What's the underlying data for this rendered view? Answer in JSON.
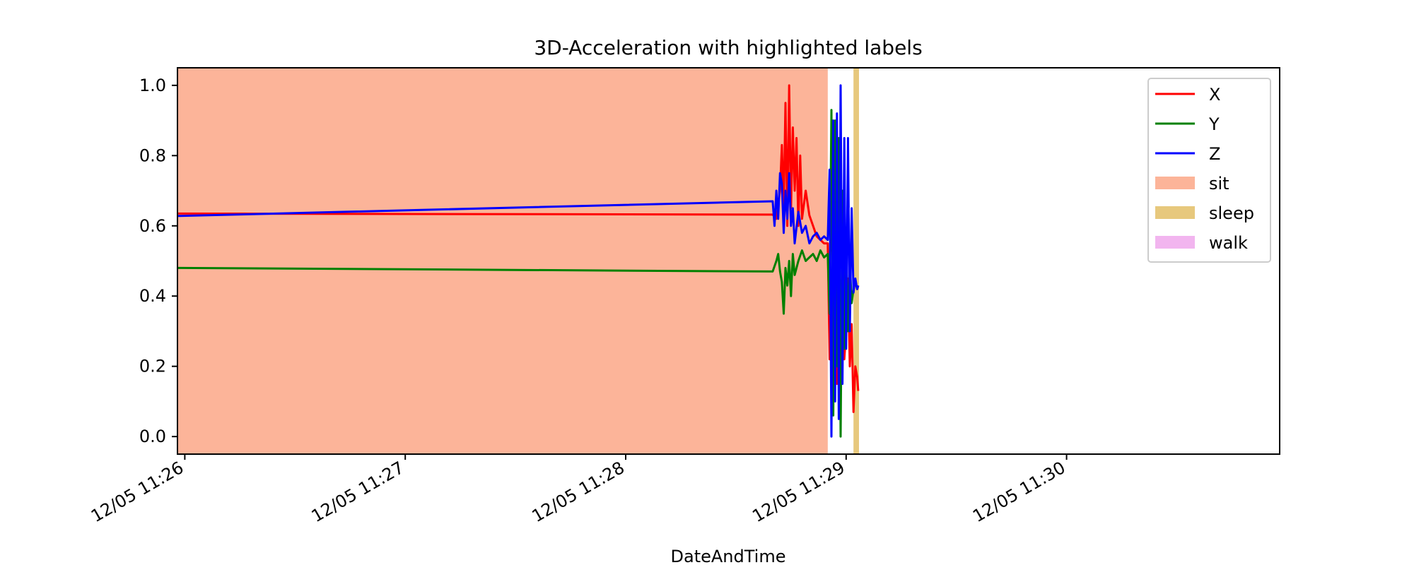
{
  "chart_data": {
    "type": "line",
    "title": "3D-Acceleration with highlighted labels",
    "xlabel": "DateAndTime",
    "ylabel": "",
    "x_range": [
      "12/05 11:25:58",
      "12/05 11:30:58"
    ],
    "ylim": [
      -0.05,
      1.05
    ],
    "x_ticks": [
      {
        "time": "11:26:00",
        "label": "12/05 11:26"
      },
      {
        "time": "11:27:00",
        "label": "12/05 11:27"
      },
      {
        "time": "11:28:00",
        "label": "12/05 11:28"
      },
      {
        "time": "11:29:00",
        "label": "12/05 11:29"
      },
      {
        "time": "11:30:00",
        "label": "12/05 11:30"
      }
    ],
    "y_ticks": [
      0.0,
      0.2,
      0.4,
      0.6,
      0.8,
      1.0
    ],
    "y_tick_labels": [
      "0.0",
      "0.2",
      "0.4",
      "0.6",
      "0.8",
      "1.0"
    ],
    "grid": false,
    "legend_position": "upper right",
    "highlighted_labels": [
      {
        "name": "sit",
        "color": "#fcb499",
        "start": "11:25:58",
        "end": "11:28:55"
      },
      {
        "name": "sleep",
        "color": "#e7c87d",
        "start": "11:29:02",
        "end": "11:29:03.5"
      },
      {
        "name": "walk",
        "color": "#f2b5ef",
        "start": "11:28:55",
        "end": "11:28:55"
      }
    ],
    "series": [
      {
        "name": "X",
        "color": "#ff0000",
        "points": [
          [
            "11:25:58",
            0.635
          ],
          [
            "11:28:40",
            0.632
          ],
          [
            "11:28:41",
            0.62
          ],
          [
            "11:28:42",
            0.7
          ],
          [
            "11:28:42.5",
            0.83
          ],
          [
            "11:28:43",
            0.65
          ],
          [
            "11:28:43.5",
            0.95
          ],
          [
            "11:28:44",
            0.6
          ],
          [
            "11:28:44.5",
            1.0
          ],
          [
            "11:28:45",
            0.65
          ],
          [
            "11:28:45.5",
            0.88
          ],
          [
            "11:28:46",
            0.7
          ],
          [
            "11:28:46.5",
            0.85
          ],
          [
            "11:28:47",
            0.6
          ],
          [
            "11:28:47.5",
            0.8
          ],
          [
            "11:28:48",
            0.62
          ],
          [
            "11:28:49",
            0.7
          ],
          [
            "11:28:50",
            0.63
          ],
          [
            "11:28:51",
            0.6
          ],
          [
            "11:28:52",
            0.57
          ],
          [
            "11:28:53",
            0.56
          ],
          [
            "11:28:54",
            0.55
          ],
          [
            "11:28:55",
            0.55
          ],
          [
            "11:28:55.5",
            0.22
          ],
          [
            "11:28:56",
            0.4
          ],
          [
            "11:28:56.5",
            0.1
          ],
          [
            "11:28:57",
            0.35
          ],
          [
            "11:28:57.5",
            0.15
          ],
          [
            "11:28:58",
            0.4
          ],
          [
            "11:28:58.5",
            0.2
          ],
          [
            "11:28:59",
            0.38
          ],
          [
            "11:28:59.5",
            0.22
          ],
          [
            "11:29:00",
            0.3
          ],
          [
            "11:29:00.5",
            0.45
          ],
          [
            "11:29:01",
            0.2
          ],
          [
            "11:29:01.5",
            0.32
          ],
          [
            "11:29:02",
            0.07
          ],
          [
            "11:29:02.5",
            0.2
          ],
          [
            "11:29:03",
            0.17
          ],
          [
            "11:29:03.3",
            0.13
          ]
        ]
      },
      {
        "name": "Y",
        "color": "#008000",
        "points": [
          [
            "11:25:58",
            0.48
          ],
          [
            "11:28:40",
            0.47
          ],
          [
            "11:28:41",
            0.5
          ],
          [
            "11:28:41.5",
            0.52
          ],
          [
            "11:28:42",
            0.47
          ],
          [
            "11:28:42.5",
            0.44
          ],
          [
            "11:28:43",
            0.35
          ],
          [
            "11:28:43.5",
            0.48
          ],
          [
            "11:28:44",
            0.43
          ],
          [
            "11:28:44.5",
            0.5
          ],
          [
            "11:28:45",
            0.4
          ],
          [
            "11:28:45.5",
            0.52
          ],
          [
            "11:28:46",
            0.46
          ],
          [
            "11:28:47",
            0.5
          ],
          [
            "11:28:48",
            0.53
          ],
          [
            "11:28:49",
            0.5
          ],
          [
            "11:28:50",
            0.51
          ],
          [
            "11:28:51",
            0.52
          ],
          [
            "11:28:52",
            0.5
          ],
          [
            "11:28:53",
            0.53
          ],
          [
            "11:28:54",
            0.51
          ],
          [
            "11:28:55",
            0.52
          ],
          [
            "11:28:55.5",
            0.35
          ],
          [
            "11:28:56",
            0.93
          ],
          [
            "11:28:56.5",
            0.06
          ],
          [
            "11:28:57",
            0.9
          ],
          [
            "11:28:57.5",
            0.2
          ],
          [
            "11:28:58",
            0.85
          ],
          [
            "11:28:58.5",
            0.0
          ],
          [
            "11:28:59",
            0.7
          ],
          [
            "11:28:59.5",
            0.25
          ],
          [
            "11:29:00",
            0.55
          ],
          [
            "11:29:00.5",
            0.3
          ],
          [
            "11:29:01",
            0.5
          ],
          [
            "11:29:01.5",
            0.38
          ],
          [
            "11:29:02",
            0.42
          ],
          [
            "11:29:02.5",
            0.44
          ],
          [
            "11:29:03",
            0.42
          ],
          [
            "11:29:03.3",
            0.43
          ]
        ]
      },
      {
        "name": "Z",
        "color": "#0000ff",
        "points": [
          [
            "11:25:58",
            0.628
          ],
          [
            "11:28:40",
            0.67
          ],
          [
            "11:28:40.5",
            0.6
          ],
          [
            "11:28:41",
            0.7
          ],
          [
            "11:28:41.5",
            0.62
          ],
          [
            "11:28:42",
            0.75
          ],
          [
            "11:28:42.5",
            0.72
          ],
          [
            "11:28:43",
            0.58
          ],
          [
            "11:28:43.5",
            0.7
          ],
          [
            "11:28:44",
            0.62
          ],
          [
            "11:28:44.5",
            0.75
          ],
          [
            "11:28:45",
            0.6
          ],
          [
            "11:28:45.5",
            0.65
          ],
          [
            "11:28:46",
            0.55
          ],
          [
            "11:28:47",
            0.64
          ],
          [
            "11:28:48",
            0.58
          ],
          [
            "11:28:49",
            0.6
          ],
          [
            "11:28:50",
            0.55
          ],
          [
            "11:28:51",
            0.57
          ],
          [
            "11:28:52",
            0.58
          ],
          [
            "11:28:53",
            0.56
          ],
          [
            "11:28:54",
            0.57
          ],
          [
            "11:28:55",
            0.56
          ],
          [
            "11:28:55.5",
            0.76
          ],
          [
            "11:28:56",
            0.0
          ],
          [
            "11:28:56.5",
            0.9
          ],
          [
            "11:28:57",
            0.1
          ],
          [
            "11:28:57.5",
            0.92
          ],
          [
            "11:28:58",
            0.05
          ],
          [
            "11:28:58.5",
            1.0
          ],
          [
            "11:28:59",
            0.15
          ],
          [
            "11:28:59.5",
            0.85
          ],
          [
            "11:29:00",
            0.25
          ],
          [
            "11:29:00.5",
            0.85
          ],
          [
            "11:29:01",
            0.3
          ],
          [
            "11:29:01.5",
            0.65
          ],
          [
            "11:29:02",
            0.41
          ],
          [
            "11:29:02.5",
            0.45
          ],
          [
            "11:29:03",
            0.42
          ],
          [
            "11:29:03.3",
            0.43
          ]
        ]
      }
    ]
  }
}
